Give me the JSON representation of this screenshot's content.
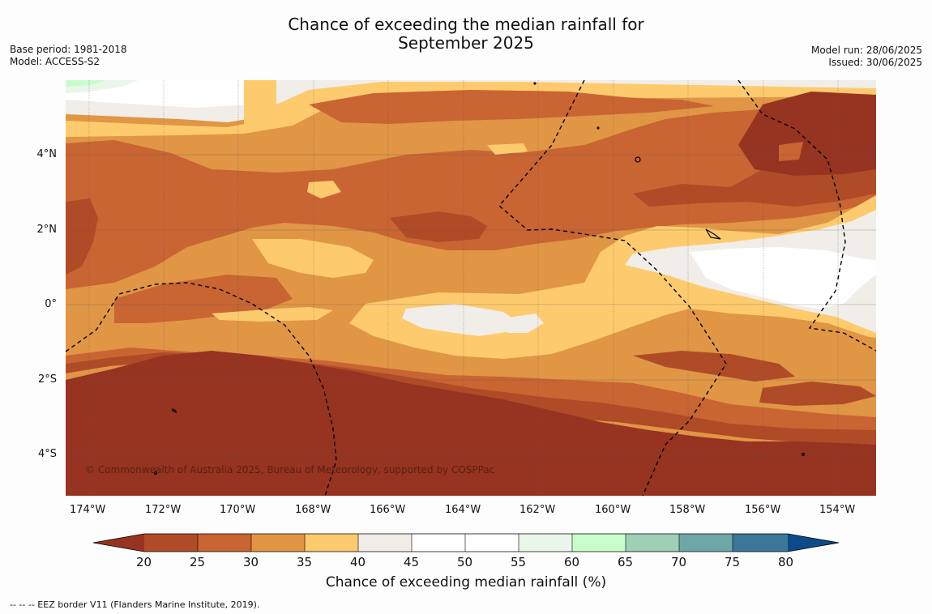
{
  "title": {
    "line1": "Chance of exceeding the median rainfall for",
    "line2": "September 2025"
  },
  "meta_left": {
    "base_period": "Base period: 1981-2018",
    "model": "Model: ACCESS-S2"
  },
  "meta_right": {
    "model_run": "Model run: 28/06/2025",
    "issued": "Issued: 30/06/2025"
  },
  "map": {
    "copyright": "© Commonwealth of Australia 2025, Bureau of Meteorology, supported by COSPPac",
    "lon_labels": [
      "174°W",
      "172°W",
      "170°W",
      "168°W",
      "166°W",
      "164°W",
      "162°W",
      "160°W",
      "158°W",
      "156°W",
      "154°W"
    ],
    "lat_labels": [
      "4°N",
      "2°N",
      "0°",
      "2°S",
      "4°S"
    ],
    "lon_range_deg": [
      -174.6,
      -153.0
    ],
    "lat_range_deg": [
      -5.0,
      6.0
    ]
  },
  "colorbar": {
    "title": "Chance of exceeding median rainfall (%)",
    "ticks": [
      "20",
      "25",
      "30",
      "35",
      "40",
      "45",
      "50",
      "55",
      "60",
      "65",
      "70",
      "75",
      "80"
    ],
    "colors": {
      "under_20": "#973321",
      "c20_25": "#b04b27",
      "c25_30": "#c96433",
      "c30_35": "#e09645",
      "c35_40": "#fdcb6e",
      "c40_45": "#f1ede8",
      "c45_50": "#ffffff",
      "c50_55": "#ffffff",
      "c55_60": "#e9f6e9",
      "c60_65": "#c9fccb",
      "c65_70": "#9dd0b5",
      "c70_75": "#6fa7a8",
      "c75_80": "#3c7699",
      "over_80": "#0d4a8a"
    }
  },
  "eez_note": "--  --  -- EEZ border V11 (Flanders Marine Institute, 2019)."
}
